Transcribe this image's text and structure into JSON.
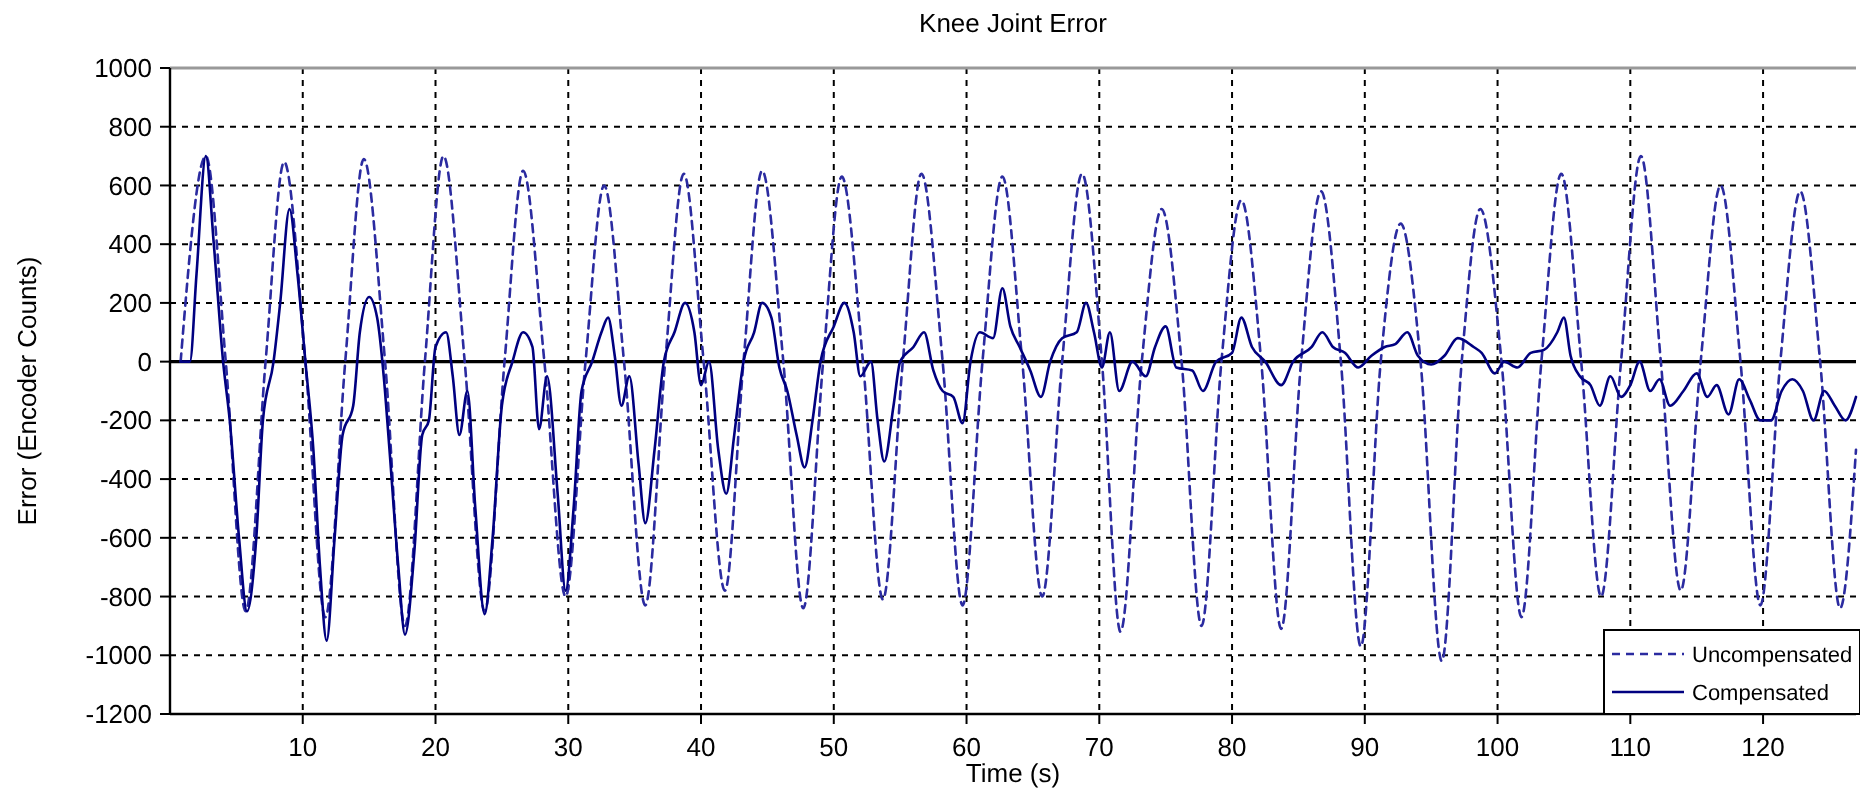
{
  "chart_data": {
    "type": "line",
    "title": "Knee Joint Error",
    "xlabel": "Time (s)",
    "ylabel": "Error (Encoder Counts)",
    "xlim": [
      0,
      127
    ],
    "xticks": [
      10,
      20,
      30,
      40,
      50,
      60,
      70,
      80,
      90,
      100,
      110,
      120
    ],
    "ylim": [
      -1200,
      1000
    ],
    "yticks": [
      -1200,
      -1000,
      -800,
      -600,
      -400,
      -200,
      0,
      200,
      400,
      600,
      800,
      1000
    ],
    "grid": true,
    "legend": "bottom right",
    "marker": "none",
    "ref_lines": [
      {
        "axis": "y",
        "value": 0,
        "color": "#000000",
        "line_style": "solid"
      }
    ],
    "series": [
      {
        "name": "Uncompensated",
        "color": "#2b2ba0",
        "line_style": "dashed",
        "x": [
          0.8,
          2.7,
          4.2,
          5.7,
          7.2,
          8.6,
          10.2,
          11.7,
          13.2,
          14.6,
          16.2,
          17.7,
          19.2,
          20.6,
          22.2,
          23.7,
          25.2,
          26.6,
          28.2,
          29.8,
          31.3,
          32.7,
          34.2,
          35.8,
          37.3,
          38.7,
          40.2,
          41.8,
          43.2,
          44.6,
          46.2,
          47.7,
          49.2,
          50.6,
          52.2,
          53.7,
          55.2,
          56.6,
          58.2,
          59.7,
          61.2,
          62.7,
          64.2,
          65.7,
          67.2,
          68.7,
          70.2,
          71.6,
          73.2,
          74.7,
          76.2,
          77.7,
          79.2,
          80.7,
          82.2,
          83.7,
          85.2,
          86.7,
          88.2,
          89.7,
          91.2,
          92.7,
          94.2,
          95.8,
          97.3,
          98.7,
          100.3,
          101.8,
          103.3,
          104.8,
          106.3,
          107.8,
          109.3,
          110.8,
          112.3,
          113.8,
          115.3,
          116.8,
          118.3,
          119.8,
          121.3,
          122.8,
          124.3,
          125.8,
          127.0
        ],
        "values": [
          0,
          700,
          0,
          -850,
          0,
          680,
          0,
          -870,
          0,
          690,
          0,
          -900,
          0,
          700,
          0,
          -850,
          0,
          650,
          0,
          -800,
          0,
          600,
          0,
          -830,
          0,
          640,
          0,
          -780,
          0,
          650,
          0,
          -840,
          0,
          630,
          0,
          -810,
          0,
          640,
          0,
          -830,
          0,
          630,
          0,
          -800,
          0,
          640,
          0,
          -920,
          0,
          520,
          0,
          -900,
          0,
          550,
          0,
          -910,
          0,
          580,
          0,
          -970,
          0,
          470,
          0,
          -1020,
          0,
          520,
          0,
          -870,
          0,
          640,
          0,
          -800,
          0,
          700,
          0,
          -780,
          0,
          600,
          0,
          -830,
          0,
          580,
          0,
          -840,
          -300
        ]
      },
      {
        "name": "Compensated",
        "color": "#000080",
        "line_style": "solid",
        "x": [
          0.8,
          1.5,
          2.0,
          2.7,
          3.3,
          4.0,
          4.5,
          5.2,
          5.8,
          6.5,
          7.0,
          7.8,
          8.3,
          9.0,
          9.6,
          10.2,
          10.8,
          11.3,
          11.8,
          12.4,
          13.0,
          13.8,
          14.3,
          15.0,
          15.6,
          16.1,
          16.5,
          17.2,
          17.7,
          18.4,
          19.0,
          19.5,
          20.0,
          20.8,
          21.3,
          21.8,
          22.4,
          23.0,
          23.7,
          24.3,
          25.0,
          25.8,
          26.6,
          27.3,
          27.8,
          28.4,
          29.2,
          29.8,
          30.4,
          31.0,
          31.8,
          32.5,
          33.0,
          33.5,
          34.0,
          34.6,
          35.3,
          35.8,
          36.5,
          37.2,
          38.0,
          38.8,
          39.5,
          40.0,
          40.6,
          41.3,
          41.9,
          42.5,
          43.2,
          44.0,
          44.6,
          45.3,
          45.9,
          46.5,
          47.2,
          47.8,
          48.4,
          49.0,
          50.0,
          50.8,
          51.5,
          52.0,
          52.8,
          53.3,
          53.8,
          54.5,
          55.0,
          56.0,
          56.8,
          57.5,
          58.2,
          59.0,
          59.7,
          60.3,
          61.0,
          62.0,
          62.7,
          63.3,
          64.0,
          64.8,
          65.6,
          66.3,
          67.2,
          68.3,
          69.0,
          69.6,
          70.2,
          70.8,
          71.5,
          72.5,
          73.5,
          74.2,
          75.0,
          75.8,
          77.0,
          77.8,
          78.8,
          80.0,
          80.7,
          81.5,
          82.5,
          83.7,
          84.6,
          86.0,
          86.8,
          87.6,
          88.5,
          89.5,
          90.5,
          91.5,
          92.3,
          93.2,
          94.0,
          95.0,
          96.0,
          97.0,
          98.2,
          98.8,
          99.8,
          100.5,
          101.5,
          102.5,
          103.5,
          104.5,
          105.0,
          105.5,
          106.2,
          107.0,
          107.7,
          108.5,
          109.3,
          110.0,
          110.7,
          111.5,
          112.2,
          113.0,
          114.0,
          115.0,
          115.8,
          116.5,
          117.4,
          118.2,
          119.0,
          119.8,
          120.6,
          121.4,
          122.2,
          123.0,
          123.8,
          124.6,
          125.4,
          126.2,
          127.0
        ],
        "values": [
          0,
          0,
          300,
          700,
          400,
          0,
          -200,
          -600,
          -850,
          -600,
          -200,
          0,
          200,
          520,
          300,
          0,
          -300,
          -700,
          -950,
          -600,
          -250,
          -150,
          100,
          220,
          150,
          -50,
          -280,
          -700,
          -930,
          -650,
          -250,
          -200,
          50,
          100,
          -50,
          -250,
          -100,
          -500,
          -860,
          -600,
          -150,
          0,
          100,
          50,
          -230,
          -50,
          -450,
          -780,
          -500,
          -100,
          0,
          100,
          150,
          20,
          -150,
          -50,
          -350,
          -550,
          -300,
          0,
          100,
          200,
          100,
          -80,
          0,
          -300,
          -450,
          -250,
          0,
          100,
          200,
          150,
          -20,
          -100,
          -250,
          -360,
          -200,
          0,
          120,
          200,
          100,
          -50,
          0,
          -200,
          -340,
          -150,
          0,
          50,
          100,
          -30,
          -100,
          -120,
          -210,
          0,
          100,
          80,
          250,
          120,
          50,
          -30,
          -120,
          0,
          80,
          100,
          200,
          100,
          -20,
          100,
          -100,
          0,
          -50,
          50,
          120,
          -20,
          -30,
          -100,
          0,
          30,
          150,
          50,
          0,
          -80,
          0,
          50,
          100,
          50,
          30,
          -20,
          20,
          50,
          60,
          100,
          20,
          -10,
          20,
          80,
          50,
          30,
          -40,
          0,
          -20,
          30,
          40,
          100,
          150,
          20,
          -50,
          -80,
          -150,
          -50,
          -120,
          -80,
          0,
          -100,
          -60,
          -150,
          -100,
          -40,
          -120,
          -80,
          -180,
          -60,
          -130,
          -200,
          -200,
          -100,
          -60,
          -100,
          -200,
          -100,
          -150,
          -200,
          -120
        ]
      }
    ]
  }
}
